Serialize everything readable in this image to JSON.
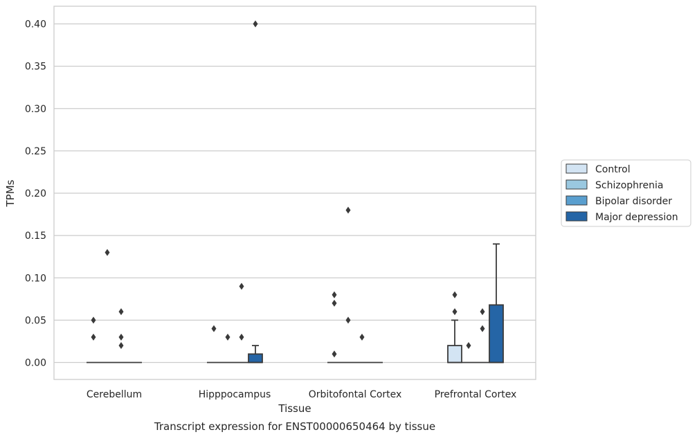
{
  "chart_data": {
    "type": "box",
    "title": "",
    "caption": "Transcript expression for ENST00000650464 by tissue",
    "xlabel": "Tissue",
    "ylabel": "TPMs",
    "ylim": [
      -0.02,
      0.42
    ],
    "yticks": [
      "0.00",
      "0.05",
      "0.10",
      "0.15",
      "0.20",
      "0.25",
      "0.30",
      "0.35",
      "0.40"
    ],
    "ytick_values": [
      0,
      0.05,
      0.1,
      0.15,
      0.2,
      0.25,
      0.3,
      0.35,
      0.4
    ],
    "grid": "horizontal",
    "legend_position": "right",
    "categories": [
      "Cerebellum",
      "Hipppocampus",
      "Orbitofontal Cortex",
      "Prefrontal Cortex"
    ],
    "series": [
      {
        "name": "Control",
        "color": "#d3e4f3",
        "boxes": [
          {
            "q1": 0,
            "median": 0,
            "q3": 0,
            "whisker_low": 0,
            "whisker_high": 0,
            "outliers": [
              0.03,
              0.05
            ]
          },
          {
            "q1": 0,
            "median": 0,
            "q3": 0,
            "whisker_low": 0,
            "whisker_high": 0,
            "outliers": [
              0.04
            ]
          },
          {
            "q1": 0,
            "median": 0,
            "q3": 0,
            "whisker_low": 0,
            "whisker_high": 0,
            "outliers": [
              0.01,
              0.07,
              0.08
            ]
          },
          {
            "q1": 0,
            "median": 0,
            "q3": 0.02,
            "whisker_low": 0,
            "whisker_high": 0.05,
            "outliers": [
              0.06,
              0.08
            ]
          }
        ]
      },
      {
        "name": "Schizophrenia",
        "color": "#9ac8e0",
        "boxes": [
          {
            "q1": 0,
            "median": 0,
            "q3": 0,
            "whisker_low": 0,
            "whisker_high": 0,
            "outliers": [
              0.13
            ]
          },
          {
            "q1": 0,
            "median": 0,
            "q3": 0,
            "whisker_low": 0,
            "whisker_high": 0,
            "outliers": [
              0.03
            ]
          },
          {
            "q1": 0,
            "median": 0,
            "q3": 0,
            "whisker_low": 0,
            "whisker_high": 0,
            "outliers": [
              0.05,
              0.18
            ]
          },
          {
            "q1": 0,
            "median": 0,
            "q3": 0,
            "whisker_low": 0,
            "whisker_high": 0,
            "outliers": [
              0.02
            ]
          }
        ]
      },
      {
        "name": "Bipolar disorder",
        "color": "#5a9fcf",
        "boxes": [
          {
            "q1": 0,
            "median": 0,
            "q3": 0,
            "whisker_low": 0,
            "whisker_high": 0,
            "outliers": [
              0.02,
              0.03,
              0.06
            ]
          },
          {
            "q1": 0,
            "median": 0,
            "q3": 0,
            "whisker_low": 0,
            "whisker_high": 0,
            "outliers": [
              0.03,
              0.09
            ]
          },
          {
            "q1": 0,
            "median": 0,
            "q3": 0,
            "whisker_low": 0,
            "whisker_high": 0,
            "outliers": [
              0.03
            ]
          },
          {
            "q1": 0,
            "median": 0,
            "q3": 0,
            "whisker_low": 0,
            "whisker_high": 0,
            "outliers": [
              0.04,
              0.06
            ]
          }
        ]
      },
      {
        "name": "Major depression",
        "color": "#2565a6",
        "boxes": [
          {
            "q1": 0,
            "median": 0,
            "q3": 0,
            "whisker_low": 0,
            "whisker_high": 0,
            "outliers": []
          },
          {
            "q1": 0,
            "median": 0,
            "q3": 0.01,
            "whisker_low": 0,
            "whisker_high": 0.02,
            "outliers": [
              0.4
            ]
          },
          {
            "q1": 0,
            "median": 0,
            "q3": 0,
            "whisker_low": 0,
            "whisker_high": 0,
            "outliers": []
          },
          {
            "q1": 0,
            "median": 0,
            "q3": 0.068,
            "whisker_low": 0,
            "whisker_high": 0.14,
            "outliers": []
          }
        ]
      }
    ]
  }
}
